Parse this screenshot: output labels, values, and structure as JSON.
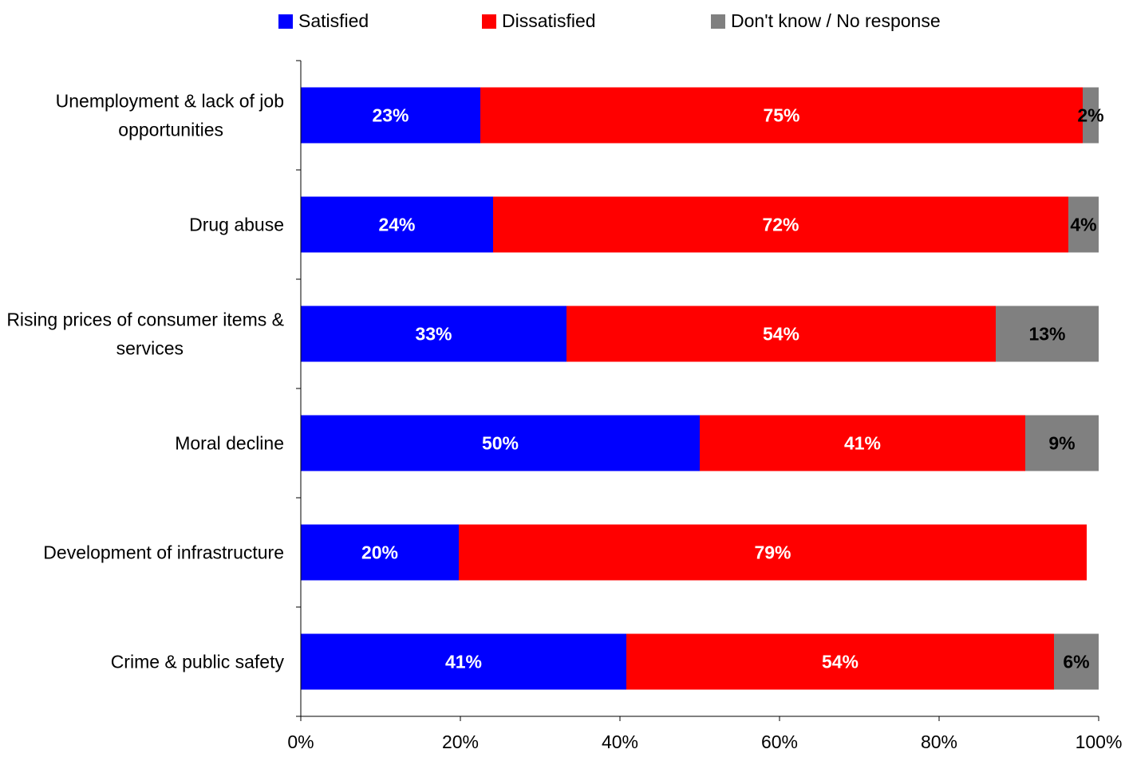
{
  "chart_data": {
    "type": "bar",
    "orientation": "horizontal",
    "stacked": true,
    "categories": [
      "Unemployment & lack of job opportunities",
      "Drug abuse",
      "Rising prices of consumer items & services",
      "Moral decline",
      "Development of infrastructure",
      "Crime & public safety"
    ],
    "category_lines": [
      [
        "Unemployment & lack of job",
        "opportunities"
      ],
      [
        "Drug abuse"
      ],
      [
        "Rising prices of consumer items &",
        "services"
      ],
      [
        "Moral decline"
      ],
      [
        "Development of infrastructure"
      ],
      [
        "Crime & public safety"
      ]
    ],
    "series": [
      {
        "name": "Satisfied",
        "color": "#0000ff",
        "label_color": "#ffffff",
        "values": [
          22.5,
          24.1,
          33.3,
          50.0,
          19.8,
          40.8
        ],
        "labels": [
          "23%",
          "24%",
          "33%",
          "50%",
          "20%",
          "41%"
        ]
      },
      {
        "name": "Dissatisfied",
        "color": "#ff0000",
        "label_color": "#ffffff",
        "values": [
          75.5,
          72.1,
          53.8,
          40.8,
          78.7,
          53.6
        ],
        "labels": [
          "75%",
          "72%",
          "54%",
          "41%",
          "79%",
          "54%"
        ]
      },
      {
        "name": "Don't know / No response",
        "color": "#808080",
        "label_color": "#000000",
        "values": [
          2.0,
          3.8,
          12.9,
          9.2,
          0,
          5.6
        ],
        "labels": [
          "2%",
          "4%",
          "13%",
          "9%",
          "",
          "6%"
        ]
      }
    ],
    "x_ticks": [
      "0%",
      "20%",
      "40%",
      "60%",
      "80%",
      "100%"
    ],
    "xlim": [
      0,
      100
    ],
    "title": "",
    "xlabel": "",
    "ylabel": "",
    "grid": false,
    "legend_position": "top"
  }
}
